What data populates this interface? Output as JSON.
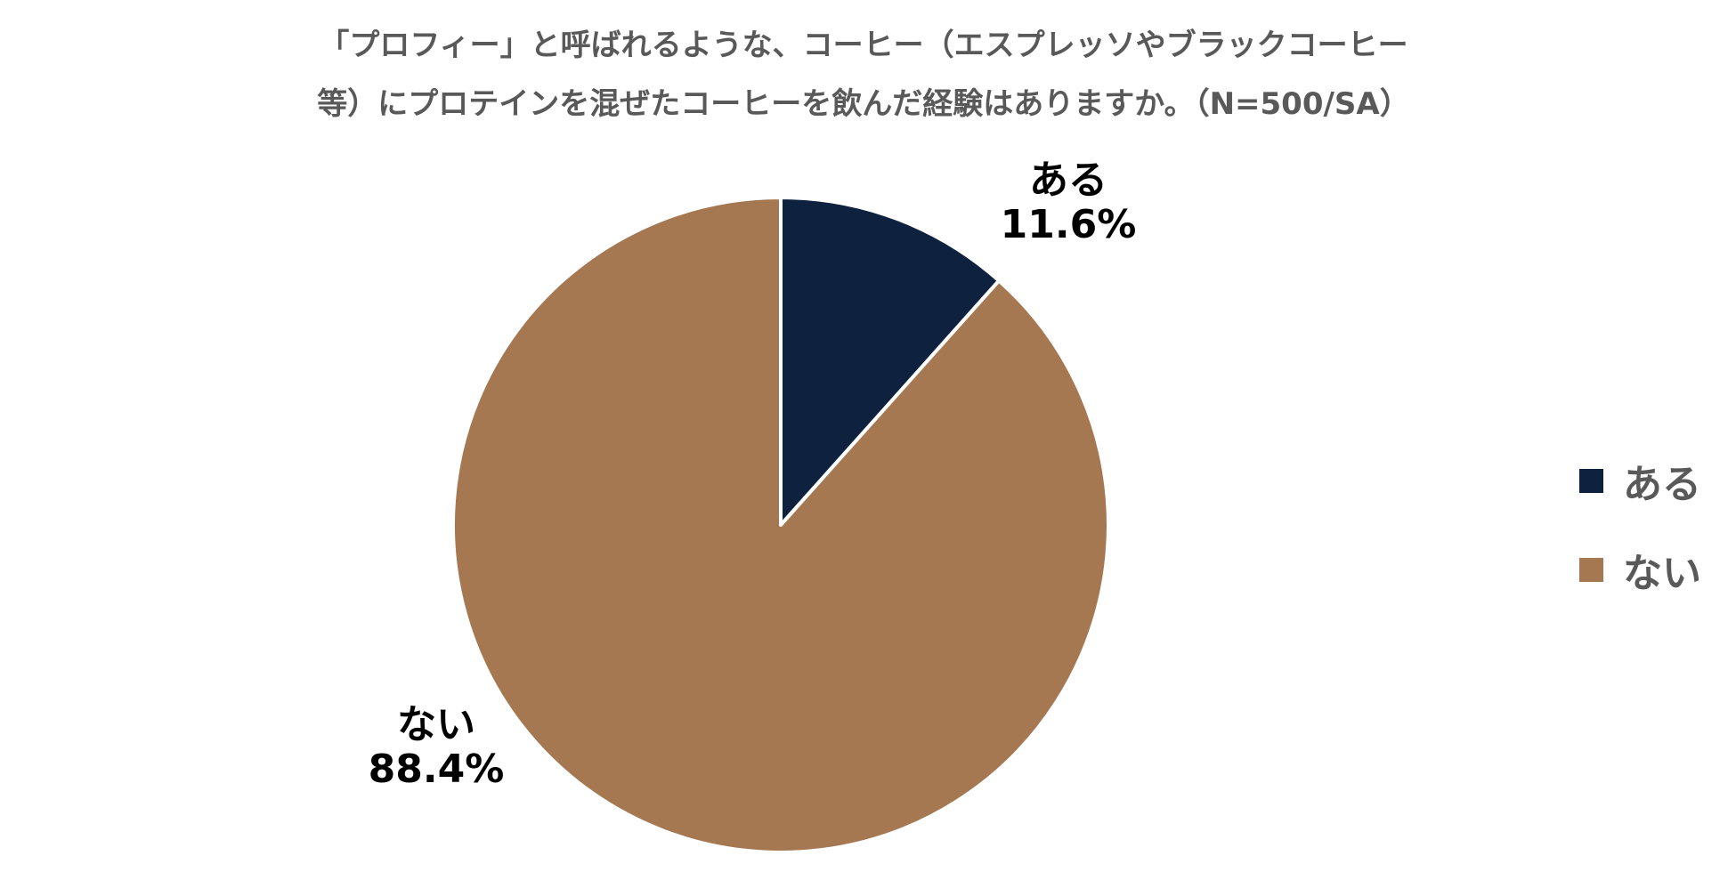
{
  "chart_data": {
    "type": "pie",
    "title_lines": [
      "「プロフィー」と呼ばれるような、コーヒー（エスプレッソやブラックコーヒー",
      "等）にプロテインを混ぜたコーヒーを飲んだ経験はありますか。（N=500/SA）"
    ],
    "categories": [
      "ある",
      "ない"
    ],
    "values": [
      11.6,
      88.4
    ],
    "unit": "%",
    "data_labels": [
      {
        "category": "ある",
        "value": "11.6%"
      },
      {
        "category": "ない",
        "value": "88.4%"
      }
    ],
    "colors": [
      "#0e2240",
      "#a57852"
    ],
    "start_angle": "12 o'clock",
    "direction": "clockwise",
    "legend": {
      "placement": "right",
      "items": [
        {
          "label": "ある",
          "color": "#0e2240"
        },
        {
          "label": "ない",
          "color": "#a57852"
        }
      ]
    }
  }
}
